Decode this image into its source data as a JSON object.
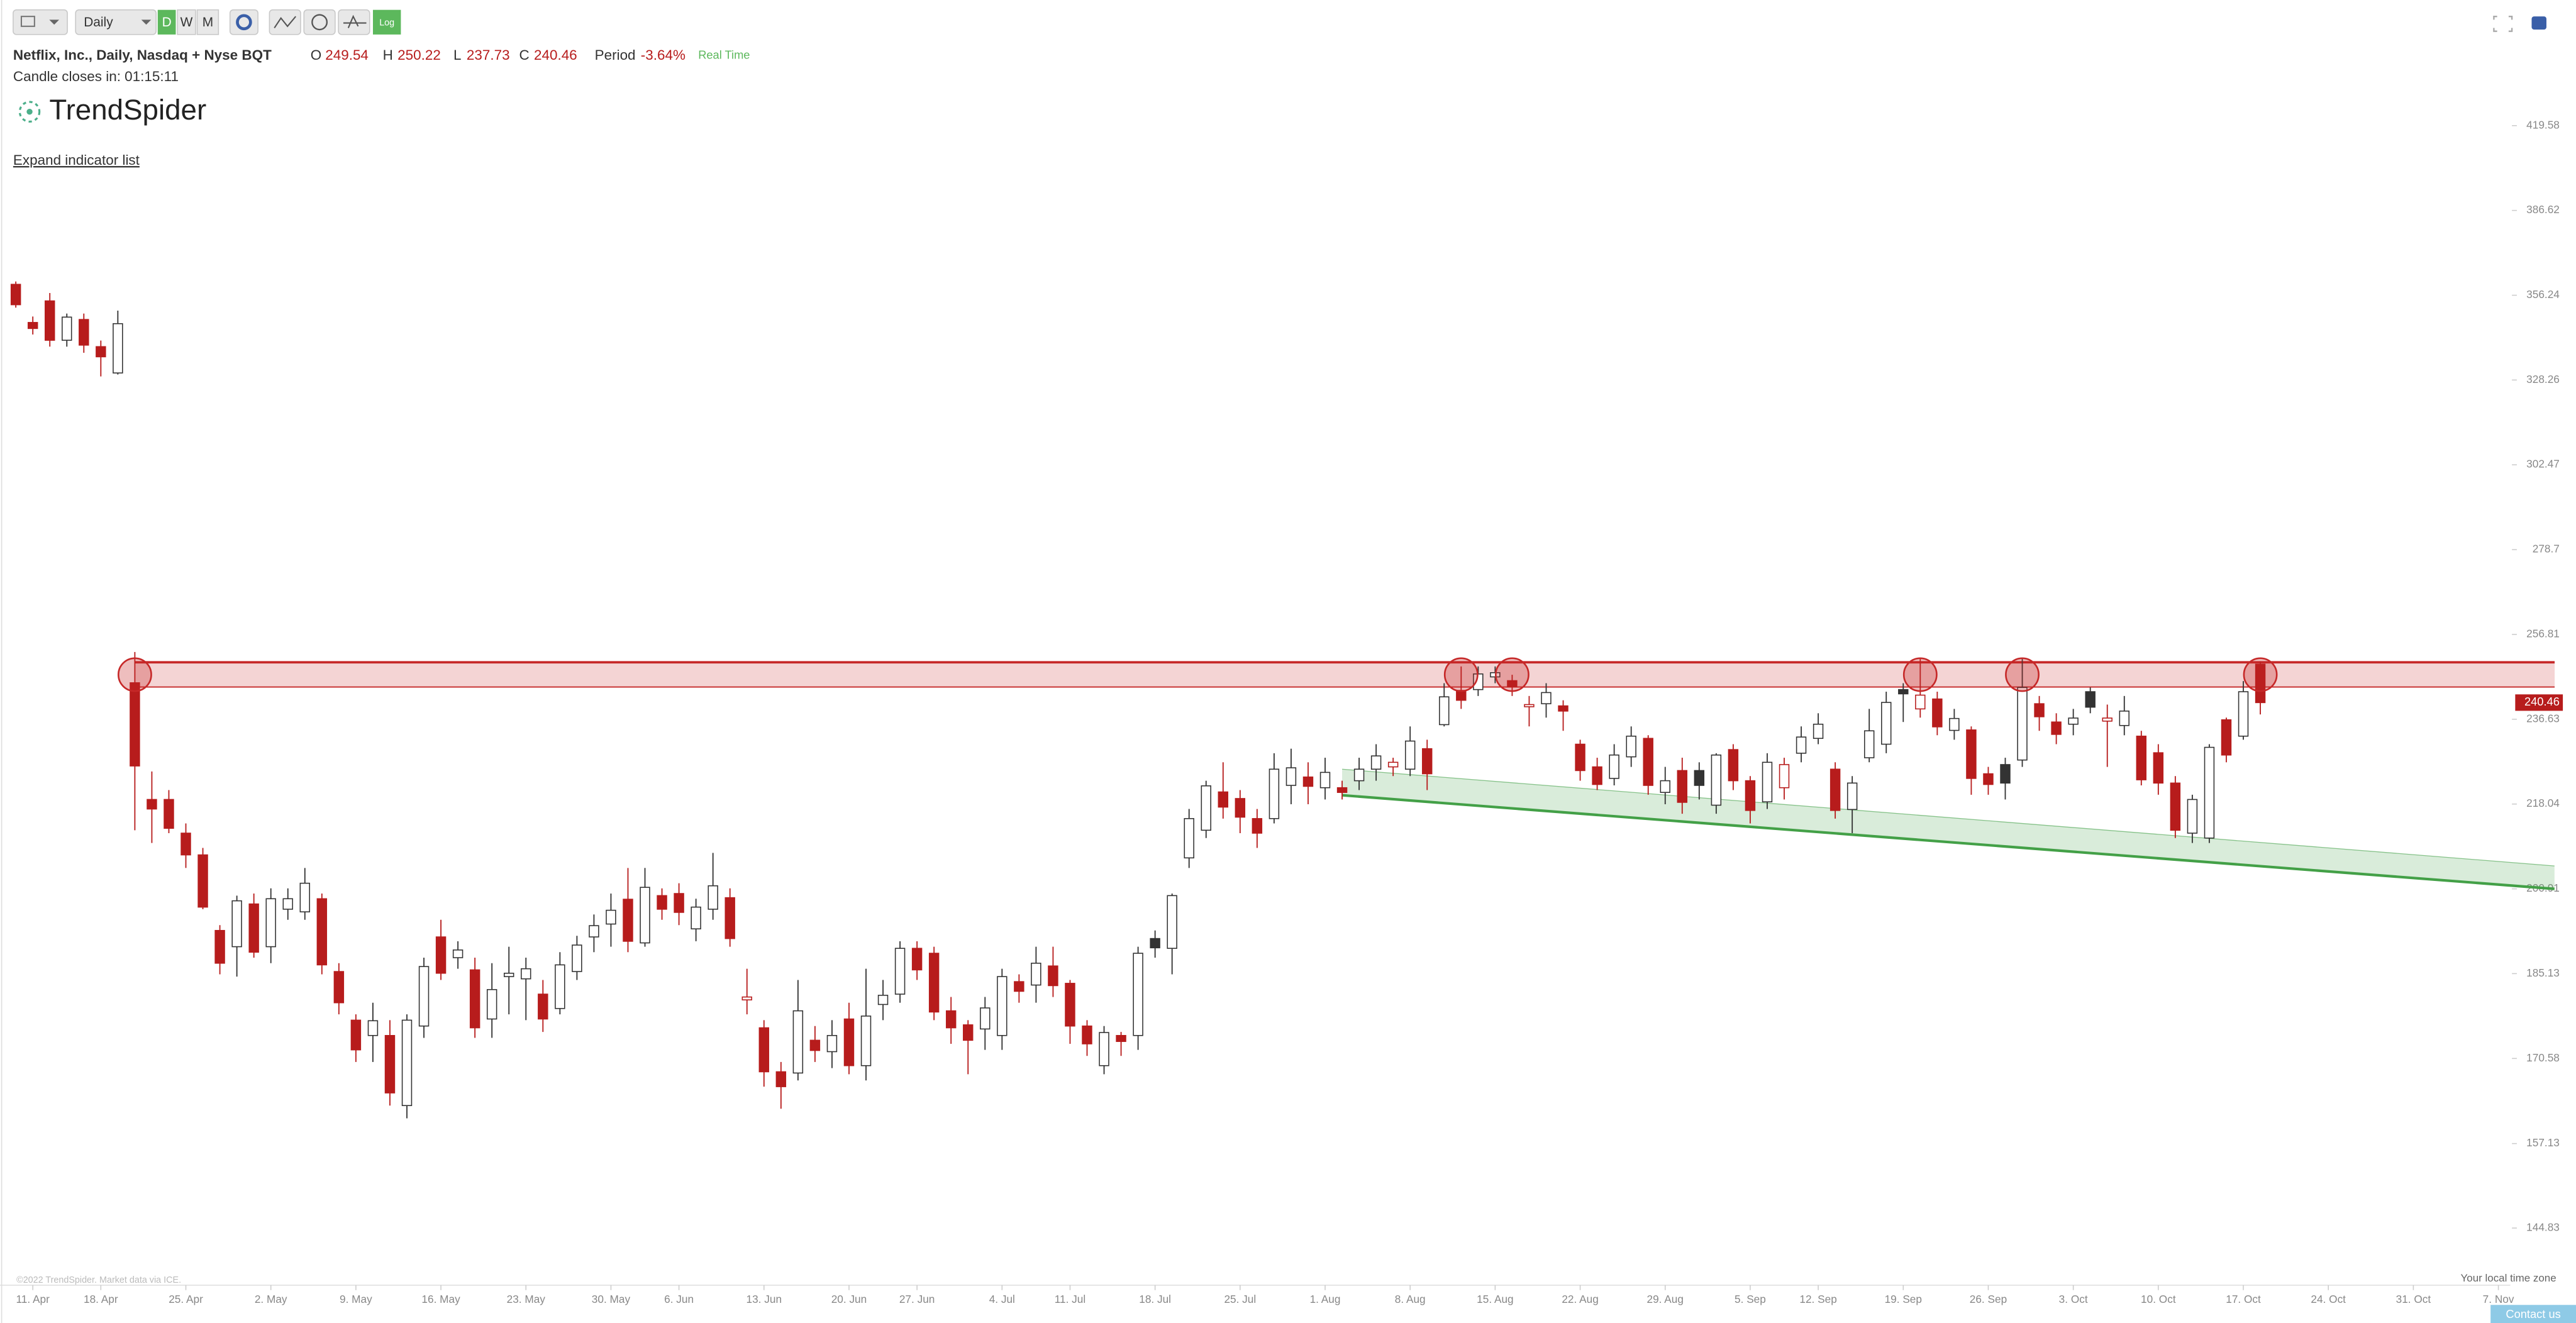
{
  "toolbar": {
    "interval": "Daily",
    "periods": [
      "D",
      "W",
      "M"
    ],
    "log": "Log"
  },
  "header": {
    "symbol": "Netflix, Inc., Daily, Nasdaq + Nyse BQT",
    "open_label": "O",
    "high_label": "H",
    "low_label": "L",
    "close_label": "C",
    "period_label": "Period",
    "period_value": "-3.64%",
    "mode": "Real Time",
    "countdown": "Candle closes in: 01:15:11",
    "brand": "TrendSpider",
    "expand": "Expand indicator list"
  },
  "footer": {
    "copyright": "©2022 TrendSpider. Market data via ICE.",
    "timezone": "Your local time zone",
    "contact": "Contact us"
  },
  "chart_data": {
    "type": "candlestick",
    "open": [
      360,
      347,
      354.3,
      341.1,
      348,
      339,
      330.5,
      245.1,
      219,
      219,
      212,
      207.6,
      193,
      190,
      198,
      190,
      197,
      196.5,
      199,
      185.5,
      177,
      174.4,
      174.4,
      163,
      176,
      191.8,
      188,
      185.8,
      177.2,
      184.6,
      184.2,
      181.5,
      179,
      185.5,
      191.8,
      194.2,
      198.9,
      190.7,
      199.6,
      200,
      193.3,
      197,
      199.2,
      180.5,
      175.7,
      168.4,
      168.2,
      173.6,
      171.7,
      177.2,
      169.4,
      179.7,
      181.5,
      189.7,
      188.8,
      178.6,
      176.2,
      175.5,
      174.4,
      183.7,
      183.1,
      186.5,
      183.4,
      176,
      169.4,
      174.4,
      174.4,
      191.5,
      189.7,
      207,
      212.6,
      220.6,
      219.2,
      215,
      215,
      222,
      223.8,
      221.5,
      221.5,
      223,
      225.5,
      226,
      225.5,
      230,
      235.4,
      243.3,
      243.5,
      246.5,
      245.6,
      239.5,
      240.2,
      239.7,
      231,
      226,
      223.5,
      228.2,
      232.3,
      220.5,
      225.2,
      225.2,
      217.8,
      229.8,
      223,
      218.5,
      221.5,
      229,
      232.3,
      225.5,
      216.9,
      228,
      231,
      243.5,
      239,
      241.3,
      234.1,
      234.2,
      224.5,
      226.5,
      227.5,
      240.2,
      236,
      235.5,
      243,
      236.2,
      235.2,
      232.8,
      229.1,
      222.5,
      212,
      211,
      236.5,
      232.8,
      249.54
    ],
    "high": [
      361,
      349,
      357,
      350,
      350,
      341,
      351,
      252.5,
      225,
      221,
      214,
      209,
      194,
      199.6,
      200,
      201,
      201,
      205,
      200,
      187,
      178,
      180,
      177,
      178,
      188,
      195,
      191,
      188,
      187,
      190,
      188,
      184,
      189,
      192,
      196,
      200,
      205,
      205,
      201,
      202,
      199,
      208,
      201,
      186,
      177,
      170,
      184,
      176,
      177,
      180,
      186,
      184,
      191,
      191,
      190,
      181,
      177,
      181,
      186,
      185,
      190,
      190,
      184,
      177,
      176,
      175,
      190,
      193,
      200,
      217,
      223,
      227,
      221,
      217,
      229,
      230,
      227,
      228,
      223,
      228,
      231,
      228,
      235,
      232,
      245,
      249,
      249,
      249,
      247,
      242,
      245,
      241,
      232,
      228,
      231,
      235,
      233,
      226,
      228,
      227,
      229,
      231,
      224,
      229,
      228,
      235,
      238,
      227,
      224,
      239,
      243,
      245,
      251,
      243,
      239,
      235,
      226,
      228,
      251,
      242,
      238,
      239,
      244,
      240,
      242,
      234,
      231,
      224,
      220,
      231,
      237,
      245.5,
      250.22
    ],
    "low": [
      352,
      343,
      339,
      339,
      337,
      329.4,
      330,
      212.6,
      210,
      212,
      205,
      197,
      185,
      184.6,
      188,
      187,
      195,
      195,
      185,
      178,
      170,
      170,
      163,
      161,
      174,
      184,
      186,
      174,
      174,
      178,
      177,
      175,
      178,
      184,
      189,
      190,
      189,
      190,
      195,
      194,
      191,
      195,
      190,
      178,
      166,
      162.5,
      167,
      170,
      169,
      168,
      167,
      177,
      180,
      184,
      177,
      173,
      168,
      172,
      172,
      180,
      180,
      181,
      173,
      171,
      168,
      171,
      172,
      188,
      185,
      205,
      211,
      215,
      212,
      209,
      214,
      218,
      218,
      219,
      219,
      221,
      223,
      224,
      224,
      221,
      235,
      239,
      242,
      245,
      242,
      235,
      237,
      234,
      223,
      221,
      222,
      226,
      220,
      218,
      216,
      219,
      216,
      221,
      214,
      217,
      219,
      227,
      231,
      215,
      212,
      227,
      229,
      236,
      237,
      233,
      232,
      220,
      220,
      219,
      226,
      234,
      231,
      233,
      238,
      226,
      233,
      222,
      220,
      211,
      210,
      210,
      227,
      232,
      237.73
    ],
    "close": [
      353,
      345,
      341.1,
      348.8,
      339.5,
      335.7,
      346.6,
      226.2,
      217,
      213,
      207.6,
      197.4,
      187,
      198.6,
      189,
      199,
      199,
      202,
      186.7,
      180,
      172,
      176.9,
      165,
      177,
      186.4,
      185.2,
      189.4,
      175.7,
      182.3,
      185.2,
      186,
      177.2,
      186.7,
      190.3,
      193.9,
      196.8,
      191,
      201.2,
      197,
      196.4,
      197.4,
      201.5,
      191.5,
      181,
      168.4,
      166,
      178.6,
      171.9,
      174.4,
      169.4,
      177.7,
      181.3,
      189.7,
      185.8,
      178.4,
      175.7,
      173.6,
      179.1,
      184.6,
      182,
      187,
      183,
      176,
      173,
      174.9,
      173.4,
      188.8,
      189.8,
      199.6,
      215,
      221.9,
      217.4,
      215.3,
      212,
      225.5,
      225.8,
      221.8,
      224.8,
      220.5,
      225.5,
      228.4,
      227,
      231.7,
      224.5,
      241.8,
      241,
      247.2,
      247.5,
      244.2,
      240,
      242.8,
      238.5,
      225.2,
      222.2,
      228.6,
      232.8,
      222,
      223,
      218.4,
      222,
      228.6,
      223,
      216.7,
      227,
      226.5,
      232.6,
      235.5,
      216.7,
      222.5,
      234,
      240.5,
      242.5,
      242.2,
      234.9,
      236.8,
      223.5,
      222.2,
      222.5,
      244,
      237.2,
      233.2,
      236.9,
      239.4,
      236.9,
      238.5,
      223.2,
      222.5,
      212.6,
      219,
      230.3,
      228.6,
      243,
      240.46
    ],
    "colors": {
      "down": "#b71c1c",
      "up": "#333333",
      "hollow": "#ffffff"
    },
    "log_scale": true,
    "ylim": [
      137.06,
      429.3
    ],
    "yticks": [
      144.83,
      157.13,
      170.58,
      185.13,
      200.91,
      218.04,
      236.63,
      256.81,
      278.7,
      302.47,
      328.26,
      356.24,
      386.62,
      419.58
    ],
    "xlim": [
      -0.93,
      146.7
    ],
    "xticks": [
      {
        "value": 1,
        "label": "11. Apr"
      },
      {
        "value": 5,
        "label": "18. Apr"
      },
      {
        "value": 10,
        "label": "25. Apr"
      },
      {
        "value": 15,
        "label": "2. May"
      },
      {
        "value": 20,
        "label": "9. May"
      },
      {
        "value": 25,
        "label": "16. May"
      },
      {
        "value": 30,
        "label": "23. May"
      },
      {
        "value": 35,
        "label": "30. May"
      },
      {
        "value": 39,
        "label": "6. Jun"
      },
      {
        "value": 44,
        "label": "13. Jun"
      },
      {
        "value": 49,
        "label": "20. Jun"
      },
      {
        "value": 53,
        "label": "27. Jun"
      },
      {
        "value": 58,
        "label": "4. Jul"
      },
      {
        "value": 62,
        "label": "11. Jul"
      },
      {
        "value": 67,
        "label": "18. Jul"
      },
      {
        "value": 72,
        "label": "25. Jul"
      },
      {
        "value": 77,
        "label": "1. Aug"
      },
      {
        "value": 82,
        "label": "8. Aug"
      },
      {
        "value": 87,
        "label": "15. Aug"
      },
      {
        "value": 92,
        "label": "22. Aug"
      },
      {
        "value": 97,
        "label": "29. Aug"
      },
      {
        "value": 102,
        "label": "5. Sep"
      },
      {
        "value": 106,
        "label": "12. Sep"
      },
      {
        "value": 111,
        "label": "19. Sep"
      },
      {
        "value": 116,
        "label": "26. Sep"
      },
      {
        "value": 121,
        "label": "3. Oct"
      },
      {
        "value": 126,
        "label": "10. Oct"
      },
      {
        "value": 131,
        "label": "17. Oct"
      },
      {
        "value": 136,
        "label": "24. Oct"
      },
      {
        "value": 141,
        "label": "31. Oct"
      },
      {
        "value": 146,
        "label": "7. Nov"
      }
    ],
    "resistance": {
      "low": 244.1,
      "high": 250.0,
      "start": 7,
      "touches": [
        7,
        85,
        88,
        112,
        118,
        132
      ],
      "color": "#c62828"
    },
    "channel": {
      "start": 78,
      "end": 149.3,
      "upper": [
        225.5,
        205.4
      ],
      "lower": [
        219.9,
        200.9
      ],
      "color": "#43a047"
    }
  }
}
